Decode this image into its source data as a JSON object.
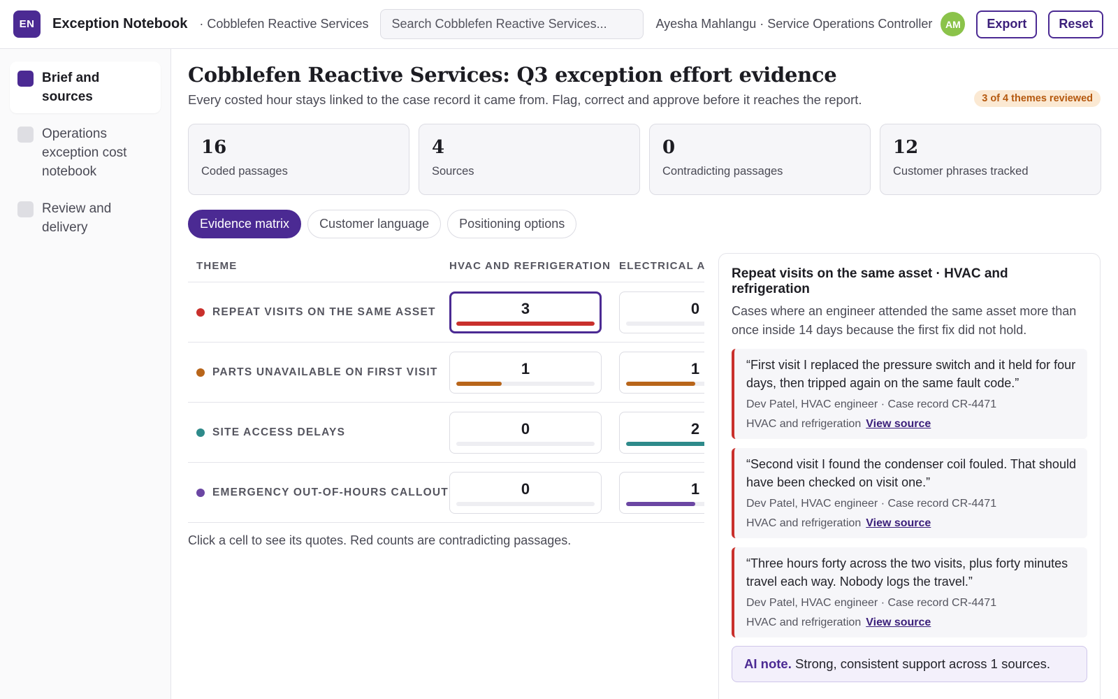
{
  "header": {
    "logo_text": "EN",
    "app_name": "Exception Notebook",
    "breadcrumb": "· Cobblefen Reactive Services",
    "search_placeholder": "Search Cobblefen Reactive Services...",
    "user_text": "Ayesha Mahlangu · Service Operations Controller",
    "avatar_initials": "AM",
    "export_label": "Export",
    "reset_label": "Reset"
  },
  "sidebar": {
    "items": [
      {
        "label": "Brief and sources",
        "active": true
      },
      {
        "label": "Operations exception cost notebook",
        "active": false
      },
      {
        "label": "Review and delivery",
        "active": false
      }
    ]
  },
  "main": {
    "title": "Cobblefen Reactive Services: Q3 exception effort evidence",
    "subtitle": "Every costed hour stays linked to the case record it came from. Flag, correct and approve before it reaches the report.",
    "review_badge": "3 of 4 themes reviewed",
    "stats": [
      {
        "value": "16",
        "label": "Coded passages"
      },
      {
        "value": "4",
        "label": "Sources"
      },
      {
        "value": "0",
        "label": "Contradicting passages"
      },
      {
        "value": "12",
        "label": "Customer phrases tracked"
      }
    ],
    "tabs": [
      {
        "label": "Evidence matrix",
        "active": true
      },
      {
        "label": "Customer language",
        "active": false
      },
      {
        "label": "Positioning options",
        "active": false
      }
    ]
  },
  "matrix": {
    "headers": {
      "theme": "THEME",
      "col1": "HVAC AND REFRIGERATION",
      "col2": "ELECTRICAL AND"
    },
    "rows": [
      {
        "theme": "REPEAT VISITS ON THE SAME ASSET",
        "color": "#c9302c",
        "counts": [
          "3",
          "0"
        ],
        "fill": [
          1.0,
          0.0
        ],
        "selected": 0
      },
      {
        "theme": "PARTS UNAVAILABLE ON FIRST VISIT",
        "color": "#b8651a",
        "counts": [
          "1",
          "1"
        ],
        "fill": [
          0.33,
          0.5
        ],
        "selected": -1
      },
      {
        "theme": "SITE ACCESS DELAYS",
        "color": "#2e8a8a",
        "counts": [
          "0",
          "2"
        ],
        "fill": [
          0.0,
          1.0
        ],
        "selected": -1
      },
      {
        "theme": "EMERGENCY OUT-OF-HOURS CALLOUT",
        "color": "#6b46a3",
        "counts": [
          "0",
          "1"
        ],
        "fill": [
          0.0,
          0.5
        ],
        "selected": -1
      }
    ],
    "note": "Click a cell to see its quotes. Red counts are contradicting passages."
  },
  "detail": {
    "title": "Repeat visits on the same asset · HVAC and refrigeration",
    "description": "Cases where an engineer attended the same asset more than once inside 14 days because the first fix did not hold.",
    "quotes": [
      {
        "text": "“First visit I replaced the pressure switch and it held for four days, then tripped again on the same fault code.”",
        "meta": "Dev Patel, HVAC engineer · Case record CR-4471",
        "theme": "HVAC and refrigeration",
        "link": "View source"
      },
      {
        "text": "“Second visit I found the condenser coil fouled. That should have been checked on visit one.”",
        "meta": "Dev Patel, HVAC engineer · Case record CR-4471",
        "theme": "HVAC and refrigeration",
        "link": "View source"
      },
      {
        "text": "“Three hours forty across the two visits, plus forty minutes travel each way. Nobody logs the travel.”",
        "meta": "Dev Patel, HVAC engineer · Case record CR-4471",
        "theme": "HVAC and refrigeration",
        "link": "View source"
      }
    ],
    "ai_note_label": "AI note.",
    "ai_note_text": "Strong, consistent support across 1 sources."
  },
  "colors": {
    "accent": "#4b2a93",
    "contradict": "#c9302c",
    "badge_bg": "#fbe9d3",
    "badge_text": "#b5590f"
  }
}
